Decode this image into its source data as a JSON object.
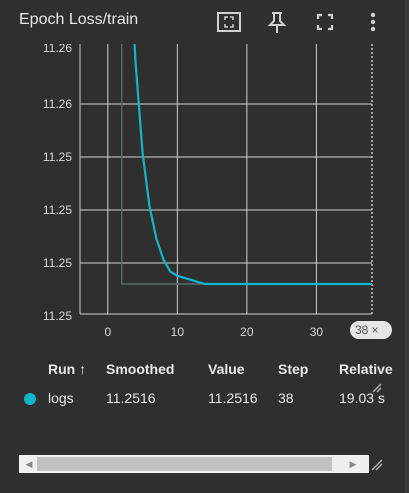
{
  "header": {
    "title": "Epoch Loss/train"
  },
  "icons": {
    "fit": "fit-domain-icon",
    "pin": "pin-icon",
    "fullscreen": "fullscreen-icon",
    "more": "more-vert-icon"
  },
  "chart_data": {
    "type": "line",
    "title": "Epoch Loss/train",
    "xlabel": "",
    "ylabel": "",
    "x_ticks": [
      "0",
      "10",
      "20",
      "30"
    ],
    "y_ticks": [
      "11.26",
      "11.25",
      "11.25",
      "11.25"
    ],
    "xlim": [
      -4,
      38
    ],
    "grid": true,
    "series": [
      {
        "name": "logs",
        "color": "#12b5cb",
        "x": [
          2,
          2.5,
          3,
          3.5,
          4,
          5,
          6,
          7,
          8,
          9,
          10,
          12,
          14,
          16,
          20,
          25,
          30,
          35,
          38
        ],
        "y": [
          11.2666,
          11.2632,
          11.2606,
          11.2586,
          11.257,
          11.2548,
          11.2535,
          11.2527,
          11.2522,
          11.2519,
          11.2518,
          11.2517,
          11.2516,
          11.2516,
          11.2516,
          11.2516,
          11.2516,
          11.2516,
          11.2516
        ]
      }
    ],
    "raw_series_color": "#5b6b6b",
    "hover_step": 38
  },
  "tooltip": {
    "step_label": "38 ×"
  },
  "table": {
    "headers": {
      "run": "Run ↑",
      "smoothed": "Smoothed",
      "value": "Value",
      "step": "Step",
      "relative": "Relative"
    },
    "rows": [
      {
        "color": "#12b5cb",
        "run": "logs",
        "smoothed": "11.2516",
        "value": "11.2516",
        "step": "38",
        "relative": "19.03 s"
      }
    ]
  },
  "scroll": {
    "left_arrow": "◀",
    "right_arrow": "▶"
  }
}
